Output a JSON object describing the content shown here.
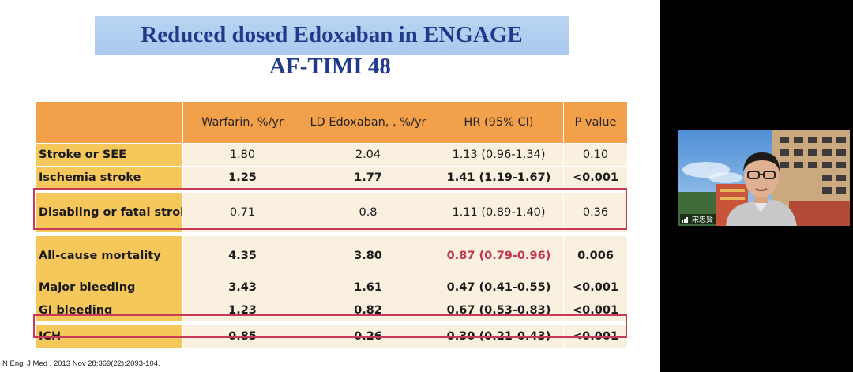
{
  "slide": {
    "title_line_1": "Reduced dosed Edoxaban in ENGAGE",
    "title_line_2": "AF-TIMI 48",
    "citation": "N Engl J Med . 2013 Nov 28;369(22):2093-104."
  },
  "table": {
    "headers": [
      "",
      "Warfarin, %/yr",
      "LD Edoxaban, , %/yr",
      "HR (95% CI)",
      "P value"
    ],
    "rows": [
      {
        "label": "Stroke or SEE",
        "warfarin": "1.80",
        "ld_edoxaban": "2.04",
        "hr": "1.13 (0.96-1.34)",
        "p": "0.10"
      },
      {
        "label": "Ischemia stroke",
        "warfarin": "1.25",
        "ld_edoxaban": "1.77",
        "hr": "1.41 (1.19-1.67)",
        "p": "<0.001"
      },
      {
        "label": "Disabling or fatal stroke",
        "warfarin": "0.71",
        "ld_edoxaban": "0.8",
        "hr": "1.11 (0.89-1.40)",
        "p": "0.36"
      },
      {
        "label": "All-cause mortality",
        "warfarin": "4.35",
        "ld_edoxaban": "3.80",
        "hr": "0.87 (0.79-0.96)",
        "p": "0.006"
      },
      {
        "label": "Major bleeding",
        "warfarin": "3.43",
        "ld_edoxaban": "1.61",
        "hr": "0.47 (0.41-0.55)",
        "p": "<0.001"
      },
      {
        "label": "GI bleeding",
        "warfarin": "1.23",
        "ld_edoxaban": "0.82",
        "hr": "0.67 (0.53-0.83)",
        "p": "<0.001"
      },
      {
        "label": "ICH",
        "warfarin": "0.85",
        "ld_edoxaban": "0.26",
        "hr": "0.30 (0.21-0.43)",
        "p": "<0.001"
      }
    ]
  },
  "colors": {
    "header_bg": "#f3a04a",
    "label_bg": "#f6c85c",
    "cell_bg": "#faf0e0",
    "highlight_border": "#c8395a",
    "title_text": "#1f3a8a"
  },
  "video": {
    "participant_name": "宋忠賢",
    "icon": "signal-bars-icon"
  }
}
